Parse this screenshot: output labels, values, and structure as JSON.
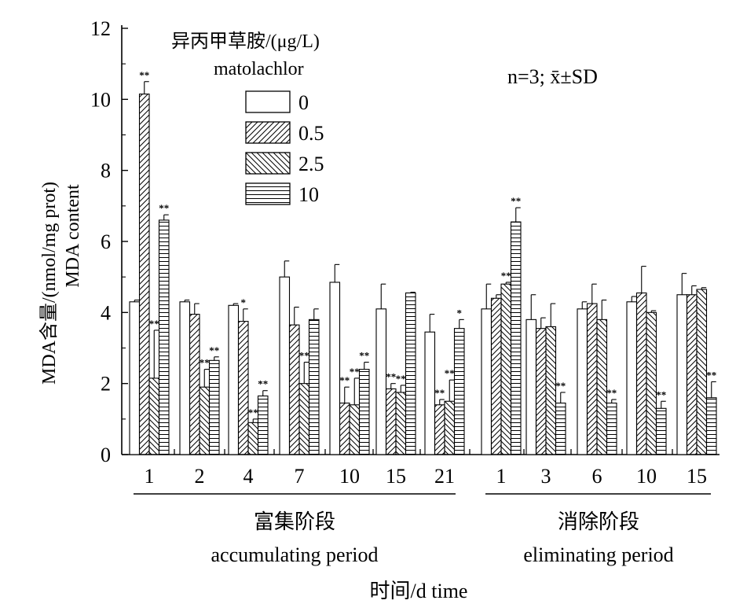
{
  "chart_data": {
    "type": "bar",
    "title": "",
    "ylabel_cn": "MDA含量/(nmol/mg prot)",
    "ylabel_en": "MDA content",
    "xlabel": "时间/d time",
    "ylim": [
      0,
      12
    ],
    "yticks": [
      0,
      2,
      4,
      6,
      8,
      10,
      12
    ],
    "legend_title_cn": "异丙甲草胺/(μg/L)",
    "legend_title_en": "matolachlor",
    "legend_position": "top-left",
    "stat_note": "n=3; x̄±SD",
    "categories": [
      "1",
      "2",
      "4",
      "7",
      "10",
      "15",
      "21",
      "1",
      "3",
      "6",
      "10",
      "15"
    ],
    "periods": [
      {
        "label_cn": "富集阶段",
        "label_en": "accumulating period",
        "categories": [
          0,
          1,
          2,
          3,
          4,
          5,
          6
        ]
      },
      {
        "label_cn": "消除阶段",
        "label_en": "eliminating period",
        "categories": [
          7,
          8,
          9,
          10,
          11
        ]
      }
    ],
    "series": [
      {
        "name": "0",
        "pattern": "none",
        "values": [
          4.3,
          4.3,
          4.2,
          5.0,
          4.85,
          4.1,
          3.45,
          4.1,
          3.8,
          4.1,
          4.3,
          4.5
        ],
        "errors": [
          0.05,
          0.05,
          0.05,
          0.45,
          0.5,
          0.7,
          0.5,
          0.7,
          0.7,
          0.2,
          0.15,
          0.6
        ],
        "sig": [
          "",
          "",
          "",
          "",
          "",
          "",
          "",
          "",
          "",
          "",
          "",
          ""
        ]
      },
      {
        "name": "0.5",
        "pattern": "forward-diagonal",
        "values": [
          10.15,
          3.95,
          3.75,
          3.65,
          1.45,
          1.85,
          1.4,
          4.4,
          3.55,
          4.25,
          4.55,
          4.5
        ],
        "errors": [
          0.35,
          0.3,
          0.35,
          0.5,
          0.45,
          0.15,
          0.15,
          0.1,
          0.3,
          0.55,
          0.75,
          0.25
        ],
        "sig": [
          "**",
          "",
          "*",
          "",
          "**",
          "**",
          "**",
          "",
          "",
          "",
          "",
          ""
        ]
      },
      {
        "name": "2.5",
        "pattern": "backward-diagonal",
        "values": [
          2.15,
          1.9,
          0.9,
          2.0,
          1.4,
          1.75,
          1.5,
          4.8,
          3.6,
          3.8,
          4.0,
          4.65
        ],
        "errors": [
          1.35,
          0.5,
          0.1,
          0.6,
          0.75,
          0.2,
          0.6,
          0.05,
          0.65,
          0.55,
          0.05,
          0.05
        ],
        "sig": [
          "**",
          "**",
          "**",
          "**",
          "**",
          "**",
          "**",
          "**",
          "",
          "",
          "",
          ""
        ]
      },
      {
        "name": "10",
        "pattern": "horizontal",
        "values": [
          6.6,
          2.65,
          1.65,
          3.8,
          2.4,
          4.55,
          3.55,
          6.55,
          1.45,
          1.45,
          1.3,
          1.6
        ],
        "errors": [
          0.15,
          0.1,
          0.15,
          0.3,
          0.2,
          0.02,
          0.25,
          0.4,
          0.3,
          0.1,
          0.2,
          0.45
        ],
        "sig": [
          "**",
          "**",
          "**",
          "",
          "**",
          "",
          "*",
          "**",
          "**",
          "**",
          "**",
          "**"
        ]
      }
    ]
  }
}
